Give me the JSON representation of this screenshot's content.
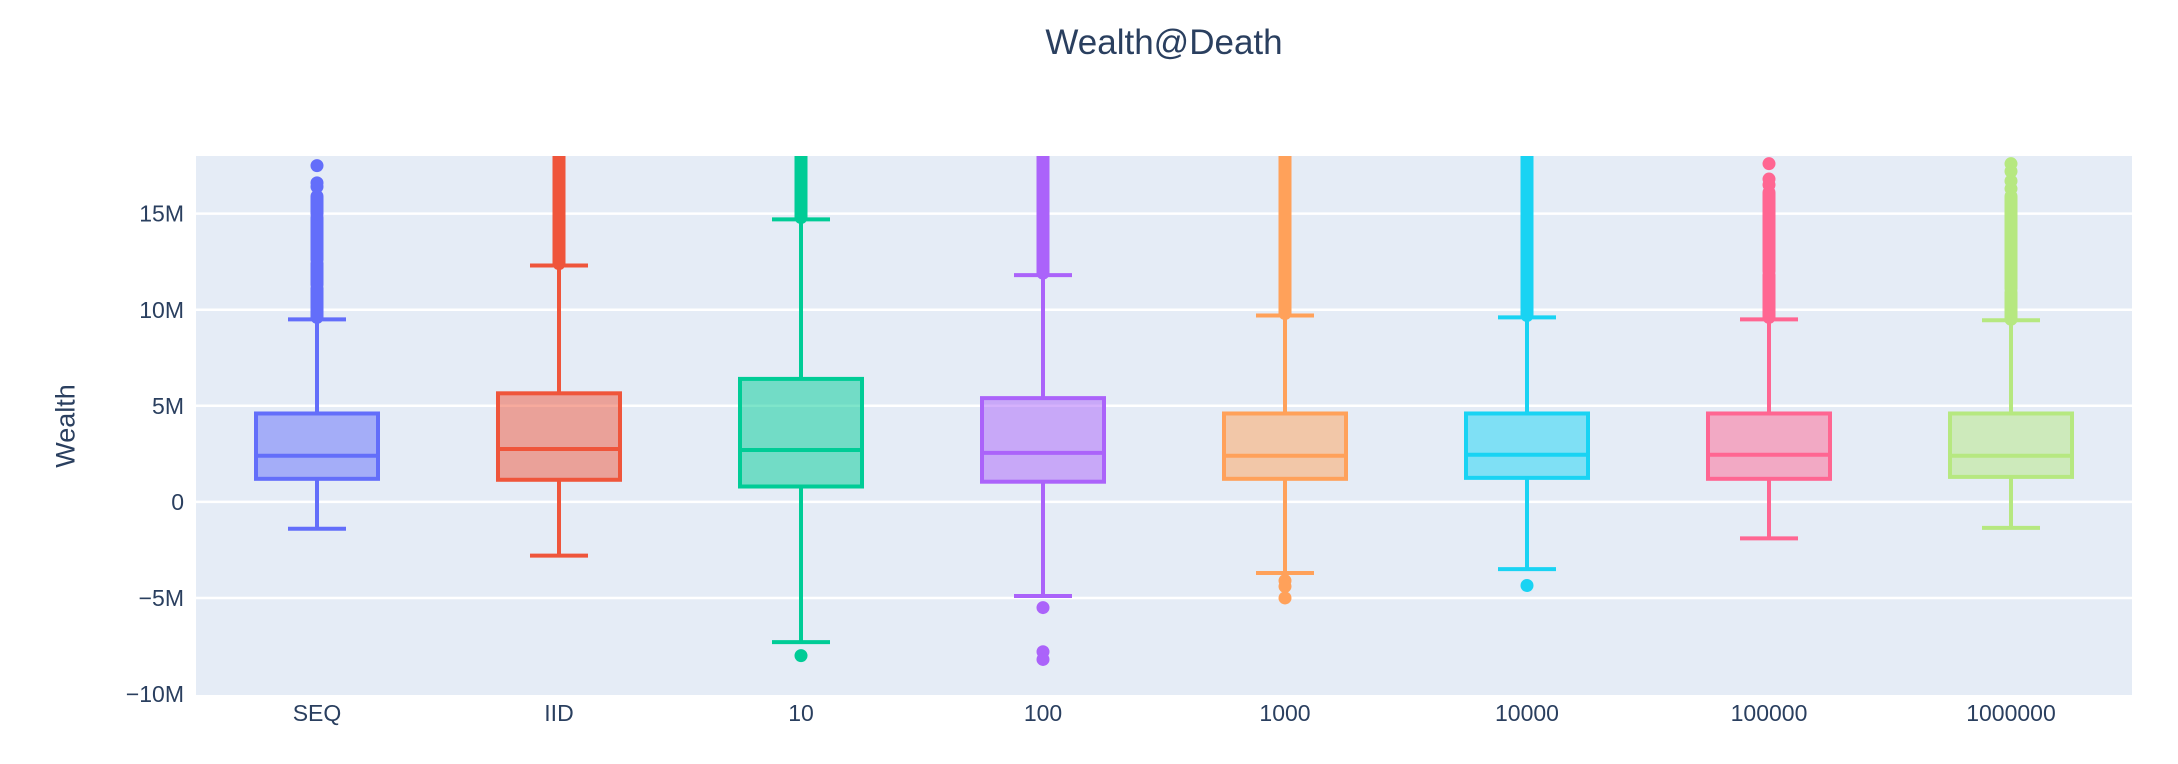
{
  "chart_data": {
    "type": "box",
    "title": "Wealth@Death",
    "ylabel": "Wealth",
    "xlabel": "",
    "legend": "none",
    "grid": true,
    "orientation": "vertical",
    "y_axis": {
      "range_millions": [
        -10,
        18
      ],
      "ticks": [
        {
          "value": -10,
          "label": "−10M"
        },
        {
          "value": -5,
          "label": "−5M"
        },
        {
          "value": 0,
          "label": "0"
        },
        {
          "value": 5,
          "label": "5M"
        },
        {
          "value": 10,
          "label": "10M"
        },
        {
          "value": 15,
          "label": "15M"
        }
      ]
    },
    "categories": [
      "SEQ",
      "IID",
      "10",
      "100",
      "1000",
      "10000",
      "100000",
      "1000000"
    ],
    "colors": {
      "paper_bg": "#ffffff",
      "plot_bg": "#e5ecf6",
      "gridline": "#ffffff",
      "text": "#2a3f5f",
      "box_fill_alpha": 0.5
    },
    "series": [
      {
        "label": "SEQ",
        "color": "#636efa",
        "q1": 1.2,
        "median": 2.4,
        "q3": 4.6,
        "whisker_low": -1.4,
        "whisker_high": 9.5,
        "upper_outliers": {
          "column": [
            [
              9.6,
              11.1
            ],
            [
              11.3,
              12.4
            ],
            [
              12.6,
              14.8
            ],
            [
              15.0,
              15.9
            ]
          ],
          "dots": [
            16.4,
            16.6,
            17.5
          ]
        },
        "lower_outliers": {
          "column": [],
          "dots": []
        }
      },
      {
        "label": "IID",
        "color": "#EF553B",
        "q1": 1.15,
        "median": 2.75,
        "q3": 5.65,
        "whisker_low": -2.8,
        "whisker_high": 12.3,
        "upper_outliers": {
          "column": [
            [
              12.4,
              18.3
            ]
          ],
          "dots": []
        },
        "lower_outliers": {
          "column": [],
          "dots": []
        }
      },
      {
        "label": "10",
        "color": "#00cc96",
        "q1": 0.8,
        "median": 2.7,
        "q3": 6.4,
        "whisker_low": -7.3,
        "whisker_high": 14.7,
        "upper_outliers": {
          "column": [
            [
              14.8,
              18.3
            ]
          ],
          "dots": []
        },
        "lower_outliers": {
          "column": [],
          "dots": [
            -8.0
          ]
        }
      },
      {
        "label": "100",
        "color": "#ab63fa",
        "q1": 1.05,
        "median": 2.55,
        "q3": 5.4,
        "whisker_low": -4.9,
        "whisker_high": 11.8,
        "upper_outliers": {
          "column": [
            [
              11.9,
              18.3
            ]
          ],
          "dots": []
        },
        "lower_outliers": {
          "column": [],
          "dots": [
            -5.5,
            -7.8,
            -8.2
          ]
        }
      },
      {
        "label": "1000",
        "color": "#FFA15A",
        "q1": 1.2,
        "median": 2.4,
        "q3": 4.6,
        "whisker_low": -3.7,
        "whisker_high": 9.7,
        "upper_outliers": {
          "column": [
            [
              9.8,
              18.3
            ]
          ],
          "dots": []
        },
        "lower_outliers": {
          "column": [],
          "dots": [
            -4.1,
            -4.4,
            -5.0
          ]
        }
      },
      {
        "label": "10000",
        "color": "#19d3f3",
        "q1": 1.25,
        "median": 2.45,
        "q3": 4.6,
        "whisker_low": -3.5,
        "whisker_high": 9.6,
        "upper_outliers": {
          "column": [
            [
              9.7,
              18.3
            ]
          ],
          "dots": []
        },
        "lower_outliers": {
          "column": [],
          "dots": [
            -4.35
          ]
        }
      },
      {
        "label": "100000",
        "color": "#FF6692",
        "q1": 1.2,
        "median": 2.45,
        "q3": 4.6,
        "whisker_low": -1.9,
        "whisker_high": 9.5,
        "upper_outliers": {
          "column": [
            [
              9.6,
              11.8
            ],
            [
              12.0,
              16.1
            ]
          ],
          "dots": [
            16.5,
            16.8,
            17.6
          ]
        },
        "lower_outliers": {
          "column": [],
          "dots": []
        }
      },
      {
        "label": "1000000",
        "color": "#B6E880",
        "q1": 1.3,
        "median": 2.4,
        "q3": 4.6,
        "whisker_low": -1.35,
        "whisker_high": 9.45,
        "upper_outliers": {
          "column": [
            [
              9.5,
              10.9
            ],
            [
              11.1,
              15.9
            ]
          ],
          "dots": [
            16.3,
            16.7,
            17.2,
            17.6
          ]
        },
        "lower_outliers": {
          "column": [],
          "dots": []
        }
      }
    ]
  }
}
